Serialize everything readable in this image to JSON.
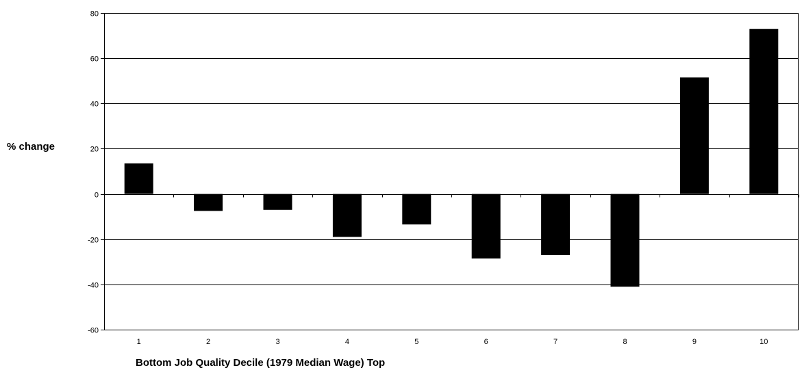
{
  "chart_data": {
    "type": "bar",
    "categories": [
      "1",
      "2",
      "3",
      "4",
      "5",
      "6",
      "7",
      "8",
      "9",
      "10"
    ],
    "values": [
      13.5,
      -7.5,
      -7,
      -19,
      -13.5,
      -28.5,
      -27,
      -41,
      51.5,
      73
    ],
    "title": "",
    "xlabel": "Bottom Job Quality Decile (1979 Median Wage) Top",
    "ylabel": "% change",
    "ylim": [
      -60,
      80
    ],
    "yticks": [
      80,
      60,
      40,
      20,
      0,
      -20,
      -40,
      -60
    ],
    "grid": true,
    "bar_color": "#000000"
  }
}
